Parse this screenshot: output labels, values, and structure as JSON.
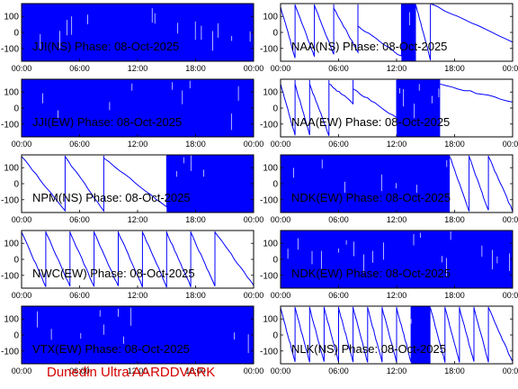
{
  "footer": "Dunedin Ultra AARDDVARK",
  "chart_data": [
    {
      "type": "line",
      "title": "JJI(NS) Phase: 08-Oct-2025",
      "x_ticks": [
        "00:00",
        "06:00",
        "12:00",
        "18:00",
        "00:00"
      ],
      "y_ticks": [
        100,
        0,
        -100
      ],
      "ylim": [
        -180,
        180
      ],
      "xlim": [
        0,
        24
      ],
      "series_color": "#0000ff",
      "segments": [
        {
          "x0": 0.0,
          "x1": 24.0,
          "style": "dense"
        }
      ]
    },
    {
      "type": "line",
      "title": "NAA(NS) Phase: 08-Oct-2025",
      "x_ticks": [
        "00:00",
        "06:00",
        "12:00",
        "18:00",
        "00:00"
      ],
      "y_ticks": [
        100,
        0,
        -100
      ],
      "ylim": [
        -180,
        180
      ],
      "xlim": [
        0,
        24
      ],
      "series_color": "#0000ff",
      "segments": [
        {
          "x0": 0.0,
          "x1": 1.5,
          "style": "wrap",
          "y0": 160,
          "y1": -160
        },
        {
          "x0": 1.5,
          "x1": 3.5,
          "style": "wrap",
          "y0": 170,
          "y1": -150
        },
        {
          "x0": 3.5,
          "x1": 5.5,
          "style": "wrap",
          "y0": 170,
          "y1": -140
        },
        {
          "x0": 5.5,
          "x1": 8.0,
          "style": "wrap",
          "y0": 150,
          "y1": -120
        },
        {
          "x0": 8.0,
          "x1": 12.5,
          "style": "wrap",
          "y0": 40,
          "y1": -150
        },
        {
          "x0": 12.5,
          "x1": 14.0,
          "style": "dense"
        },
        {
          "x0": 14.0,
          "x1": 15.5,
          "style": "wrap",
          "y0": 170,
          "y1": -170
        },
        {
          "x0": 15.5,
          "x1": 24.0,
          "style": "wrap",
          "y0": 180,
          "y1": -60
        }
      ]
    },
    {
      "type": "line",
      "title": "JJI(EW) Phase: 08-Oct-2025",
      "x_ticks": [
        "00:00",
        "06:00",
        "12:00",
        "18:00",
        "00:00"
      ],
      "y_ticks": [
        100,
        0,
        -100
      ],
      "ylim": [
        -180,
        180
      ],
      "xlim": [
        0,
        24
      ],
      "series_color": "#0000ff",
      "segments": [
        {
          "x0": 0.0,
          "x1": 24.0,
          "style": "dense"
        }
      ]
    },
    {
      "type": "line",
      "title": "NAA(EW) Phase: 08-Oct-2025",
      "x_ticks": [
        "00:00",
        "06:00",
        "12:00",
        "18:00",
        "00:00"
      ],
      "y_ticks": [
        100,
        0,
        -100
      ],
      "ylim": [
        -180,
        180
      ],
      "xlim": [
        0,
        24
      ],
      "series_color": "#0000ff",
      "segments": [
        {
          "x0": 0.0,
          "x1": 1.5,
          "style": "wrap",
          "y0": 150,
          "y1": -170
        },
        {
          "x0": 1.5,
          "x1": 3.0,
          "style": "wrap",
          "y0": 150,
          "y1": -170
        },
        {
          "x0": 3.0,
          "x1": 5.0,
          "style": "wrap",
          "y0": 150,
          "y1": -170
        },
        {
          "x0": 5.0,
          "x1": 7.5,
          "style": "wrap",
          "y0": 150,
          "y1": 30
        },
        {
          "x0": 7.5,
          "x1": 12.0,
          "style": "wrap",
          "y0": 120,
          "y1": -60
        },
        {
          "x0": 12.0,
          "x1": 16.5,
          "style": "dense"
        },
        {
          "x0": 16.5,
          "x1": 24.0,
          "style": "wrap",
          "y0": 150,
          "y1": 40
        }
      ]
    },
    {
      "type": "line",
      "title": "NPM(NS) Phase: 08-Oct-2025",
      "x_ticks": [
        "00:00",
        "06:00",
        "12:00",
        "18:00",
        "00:00"
      ],
      "y_ticks": [
        100,
        0,
        -100
      ],
      "ylim": [
        -180,
        180
      ],
      "xlim": [
        0,
        24
      ],
      "series_color": "#0000ff",
      "segments": [
        {
          "x0": 0.0,
          "x1": 4.5,
          "style": "wrap",
          "y0": 170,
          "y1": -170
        },
        {
          "x0": 4.5,
          "x1": 8.5,
          "style": "wrap",
          "y0": 170,
          "y1": -170
        },
        {
          "x0": 8.5,
          "x1": 15.0,
          "style": "wrap",
          "y0": 160,
          "y1": -150
        },
        {
          "x0": 15.0,
          "x1": 24.0,
          "style": "dense"
        }
      ]
    },
    {
      "type": "line",
      "title": "NDK(EW) Phase: 08-Oct-2025",
      "x_ticks": [
        "00:00",
        "06:00",
        "12:00",
        "18:00",
        "00:00"
      ],
      "y_ticks": [
        100,
        0,
        -100
      ],
      "ylim": [
        -180,
        180
      ],
      "xlim": [
        0,
        24
      ],
      "series_color": "#0000ff",
      "segments": [
        {
          "x0": 0.0,
          "x1": 17.5,
          "style": "dense"
        },
        {
          "x0": 17.5,
          "x1": 19.5,
          "style": "wrap",
          "y0": 170,
          "y1": -170
        },
        {
          "x0": 19.5,
          "x1": 21.5,
          "style": "wrap",
          "y0": 170,
          "y1": -170
        },
        {
          "x0": 21.5,
          "x1": 24.0,
          "style": "wrap",
          "y0": 170,
          "y1": -170
        }
      ]
    },
    {
      "type": "line",
      "title": "NWC(EW) Phase: 08-Oct-2025",
      "x_ticks": [
        "00:00",
        "06:00",
        "12:00",
        "18:00",
        "00:00"
      ],
      "y_ticks": [
        100,
        0,
        -100
      ],
      "ylim": [
        -180,
        180
      ],
      "xlim": [
        0,
        24
      ],
      "series_color": "#0000ff",
      "segments": [
        {
          "x0": 0.0,
          "x1": 2.5,
          "style": "wrap",
          "y0": 170,
          "y1": -170
        },
        {
          "x0": 2.5,
          "x1": 5.0,
          "style": "wrap",
          "y0": 170,
          "y1": -170
        },
        {
          "x0": 5.0,
          "x1": 7.5,
          "style": "wrap",
          "y0": 170,
          "y1": -170
        },
        {
          "x0": 7.5,
          "x1": 10.0,
          "style": "wrap",
          "y0": 170,
          "y1": -170
        },
        {
          "x0": 10.0,
          "x1": 12.5,
          "style": "wrap",
          "y0": 170,
          "y1": -170
        },
        {
          "x0": 12.5,
          "x1": 15.0,
          "style": "wrap",
          "y0": 170,
          "y1": -170
        },
        {
          "x0": 15.0,
          "x1": 17.5,
          "style": "wrap",
          "y0": 170,
          "y1": -170
        },
        {
          "x0": 17.5,
          "x1": 20.0,
          "style": "wrap",
          "y0": 170,
          "y1": -170
        },
        {
          "x0": 20.0,
          "x1": 24.0,
          "style": "wrap",
          "y0": 170,
          "y1": -160
        }
      ]
    },
    {
      "type": "line",
      "title": "NDK(EW) Phase: 08-Oct-2025",
      "x_ticks": [
        "00:00",
        "06:00",
        "12:00",
        "18:00",
        "00:00"
      ],
      "y_ticks": [
        100,
        0,
        -100
      ],
      "ylim": [
        -180,
        180
      ],
      "xlim": [
        0,
        24
      ],
      "series_color": "#0000ff",
      "segments": [
        {
          "x0": 0.0,
          "x1": 24.0,
          "style": "dense"
        }
      ]
    },
    {
      "type": "line",
      "title": "VTX(EW) Phase: 08-Oct-2025",
      "x_ticks": [
        "00:00",
        "06:00",
        "12:00",
        "18:00",
        "00:00"
      ],
      "y_ticks": [
        100,
        0,
        -100
      ],
      "ylim": [
        -180,
        180
      ],
      "xlim": [
        0,
        24
      ],
      "series_color": "#0000ff",
      "segments": [
        {
          "x0": 0.0,
          "x1": 24.0,
          "style": "dense"
        }
      ]
    },
    {
      "type": "line",
      "title": "NLK(NS) Phase: 08-Oct-2025",
      "x_ticks": [
        "00:00",
        "06:00",
        "12:00",
        "18:00",
        "00:00"
      ],
      "y_ticks": [
        100,
        0,
        -100
      ],
      "ylim": [
        -180,
        180
      ],
      "xlim": [
        0,
        24
      ],
      "series_color": "#0000ff",
      "segments": [
        {
          "x0": 0.0,
          "x1": 1.5,
          "style": "wrap",
          "y0": 170,
          "y1": -170
        },
        {
          "x0": 1.5,
          "x1": 3.0,
          "style": "wrap",
          "y0": 170,
          "y1": -170
        },
        {
          "x0": 3.0,
          "x1": 4.5,
          "style": "wrap",
          "y0": 170,
          "y1": -170
        },
        {
          "x0": 4.5,
          "x1": 6.0,
          "style": "wrap",
          "y0": 170,
          "y1": -170
        },
        {
          "x0": 6.0,
          "x1": 7.5,
          "style": "wrap",
          "y0": 170,
          "y1": -170
        },
        {
          "x0": 7.5,
          "x1": 9.0,
          "style": "wrap",
          "y0": 170,
          "y1": -170
        },
        {
          "x0": 9.0,
          "x1": 10.5,
          "style": "wrap",
          "y0": 170,
          "y1": -170
        },
        {
          "x0": 10.5,
          "x1": 12.0,
          "style": "wrap",
          "y0": 170,
          "y1": -170
        },
        {
          "x0": 12.0,
          "x1": 13.5,
          "style": "wrap",
          "y0": 170,
          "y1": -170
        },
        {
          "x0": 13.5,
          "x1": 15.5,
          "style": "dense"
        },
        {
          "x0": 15.5,
          "x1": 17.0,
          "style": "wrap",
          "y0": 170,
          "y1": -170
        },
        {
          "x0": 17.0,
          "x1": 18.5,
          "style": "wrap",
          "y0": 170,
          "y1": -170
        },
        {
          "x0": 18.5,
          "x1": 20.0,
          "style": "wrap",
          "y0": 170,
          "y1": -170
        },
        {
          "x0": 20.0,
          "x1": 21.5,
          "style": "wrap",
          "y0": 170,
          "y1": -170
        },
        {
          "x0": 21.5,
          "x1": 24.0,
          "style": "wrap",
          "y0": 170,
          "y1": -170
        }
      ]
    }
  ]
}
